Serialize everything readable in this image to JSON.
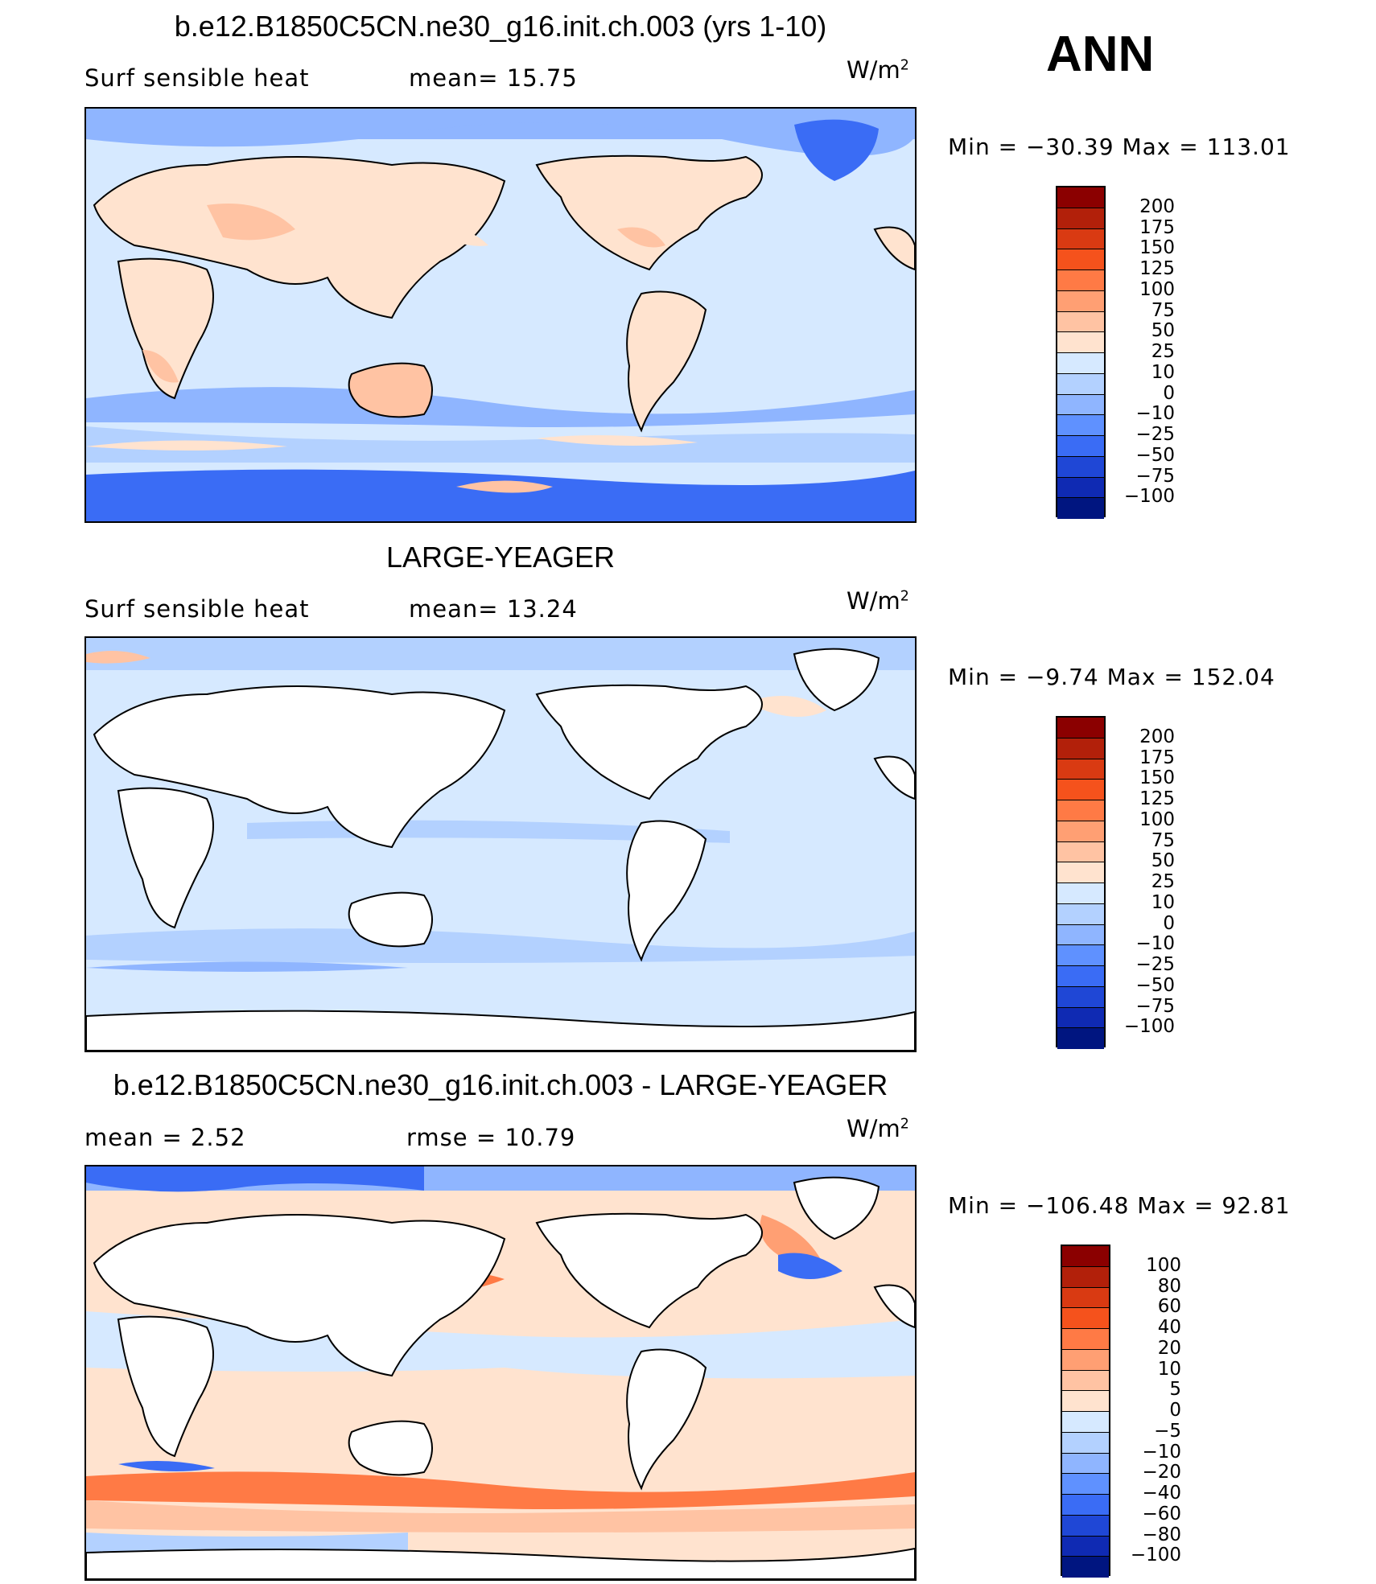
{
  "season": "ANN",
  "units_base": "W/m",
  "units_exp": "2",
  "panels": [
    {
      "title": "b.e12.B1850C5CN.ne30_g16.init.ch.003 (yrs 1-10)",
      "left_label": "Surf  sensible  heat",
      "mid_label": "mean=   15.75",
      "minmax": "Min  =  −30.39  Max  =  113.01",
      "colorbar": {
        "labels": [
          "200",
          "175",
          "150",
          "125",
          "100",
          "75",
          "50",
          "25",
          "10",
          "0",
          "−10",
          "−25",
          "−50",
          "−75",
          "−100"
        ],
        "colors": [
          "#8b0000",
          "#b2200a",
          "#d93a12",
          "#f5521c",
          "#ff7a45",
          "#ff9f73",
          "#ffc3a3",
          "#ffe3cf",
          "#d6e9ff",
          "#b3d1ff",
          "#8fb5ff",
          "#5f91ff",
          "#3a6cf5",
          "#1f47d6",
          "#0f2ab3",
          "#001580"
        ]
      }
    },
    {
      "title": "LARGE-YEAGER",
      "left_label": "Surf  sensible  heat",
      "mid_label": "mean=   13.24",
      "minmax": "Min  =   −9.74  Max  =  152.04",
      "colorbar": {
        "labels": [
          "200",
          "175",
          "150",
          "125",
          "100",
          "75",
          "50",
          "25",
          "10",
          "0",
          "−10",
          "−25",
          "−50",
          "−75",
          "−100"
        ],
        "colors": [
          "#8b0000",
          "#b2200a",
          "#d93a12",
          "#f5521c",
          "#ff7a45",
          "#ff9f73",
          "#ffc3a3",
          "#ffe3cf",
          "#d6e9ff",
          "#b3d1ff",
          "#8fb5ff",
          "#5f91ff",
          "#3a6cf5",
          "#1f47d6",
          "#0f2ab3",
          "#001580"
        ]
      }
    },
    {
      "title": "b.e12.B1850C5CN.ne30_g16.init.ch.003 - LARGE-YEAGER",
      "left_label": "mean  =     2.52",
      "mid_label": "rmse  =    10.79",
      "minmax": "Min  =  −106.48  Max  =    92.81",
      "colorbar": {
        "labels": [
          "100",
          "80",
          "60",
          "40",
          "20",
          "10",
          "5",
          "0",
          "−5",
          "−10",
          "−20",
          "−40",
          "−60",
          "−80",
          "−100"
        ],
        "colors": [
          "#8b0000",
          "#b2200a",
          "#d93a12",
          "#f5521c",
          "#ff7a45",
          "#ff9f73",
          "#ffc3a3",
          "#ffe3cf",
          "#d6e9ff",
          "#b3d1ff",
          "#8fb5ff",
          "#5f91ff",
          "#3a6cf5",
          "#1f47d6",
          "#0f2ab3",
          "#001580"
        ]
      }
    }
  ]
}
